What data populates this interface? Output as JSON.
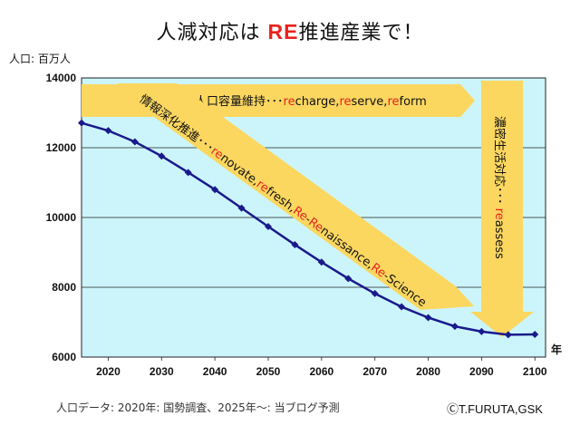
{
  "title": {
    "prefix": "人減対応は ",
    "highlight": "RE",
    "suffix": "推進産業で！"
  },
  "unit_label": "人口: 百万人",
  "year_label": "年",
  "footnote": "人口データ: 2020年: 国勢調査、2025年〜: 当ブログ予測",
  "credit": "ⒸT.FURUTA,GSK",
  "colors": {
    "plot_bg": "#ccf5fb",
    "line": "#1a1a8c",
    "arrow": "#fbd760",
    "accent": "#e8231c"
  },
  "arrows": {
    "top": [
      {
        "text": "人口容量維持･･･",
        "red": false
      },
      {
        "text": "re",
        "red": true
      },
      {
        "text": "charge,",
        "red": false
      },
      {
        "text": "re",
        "red": true
      },
      {
        "text": "serve,",
        "red": false
      },
      {
        "text": "re",
        "red": true
      },
      {
        "text": "form",
        "red": false
      }
    ],
    "diagonal": [
      {
        "text": "情報深化推進･･･",
        "red": false
      },
      {
        "text": "re",
        "red": true
      },
      {
        "text": "novate,",
        "red": false
      },
      {
        "text": "re",
        "red": true
      },
      {
        "text": "fresh,",
        "red": false
      },
      {
        "text": "Re",
        "red": true
      },
      {
        "text": "-",
        "red": false
      },
      {
        "text": "Re",
        "red": true
      },
      {
        "text": "naissance,",
        "red": false
      },
      {
        "text": "Re",
        "red": true
      },
      {
        "text": "-Science",
        "red": false
      }
    ],
    "vertical": [
      {
        "text": "濃密生活対応･･･  ",
        "red": false
      },
      {
        "text": "re",
        "red": true
      },
      {
        "text": "assess",
        "red": false
      }
    ]
  },
  "chart_data": {
    "type": "line",
    "title": "人減対応は RE推進産業で！",
    "ylabel": "人口: 百万人",
    "xlabel": "年",
    "ylim": [
      6000,
      14000
    ],
    "xlim": [
      2015,
      2102
    ],
    "yticks": [
      6000,
      8000,
      10000,
      12000,
      14000
    ],
    "xticks": [
      2020,
      2030,
      2040,
      2050,
      2060,
      2070,
      2080,
      2090,
      2100
    ],
    "grid": true,
    "series": [
      {
        "name": "人口",
        "x": [
          2015,
          2020,
          2025,
          2030,
          2035,
          2040,
          2045,
          2050,
          2055,
          2060,
          2065,
          2070,
          2075,
          2080,
          2085,
          2090,
          2095,
          2100
        ],
        "values": [
          12710,
          12490,
          12170,
          11760,
          11290,
          10800,
          10270,
          9740,
          9220,
          8720,
          8250,
          7820,
          7440,
          7130,
          6880,
          6730,
          6640,
          6650
        ]
      }
    ]
  }
}
